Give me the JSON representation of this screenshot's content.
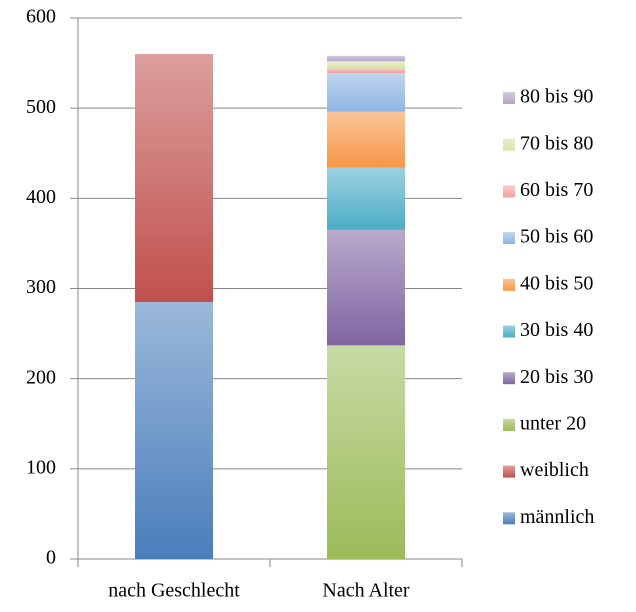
{
  "chart_data": {
    "type": "bar",
    "stacked": true,
    "categories": [
      "nach Geschlecht",
      "Nach Alter"
    ],
    "series": [
      {
        "name": "männlich",
        "color": "#4a7ebb",
        "values": [
          285,
          null
        ]
      },
      {
        "name": "weiblich",
        "color": "#c0504d",
        "values": [
          275,
          null
        ]
      },
      {
        "name": "unter 20",
        "color": "#9bbb59",
        "values": [
          null,
          237
        ]
      },
      {
        "name": "20 bis 30",
        "color": "#8064a2",
        "values": [
          null,
          128
        ]
      },
      {
        "name": "30 bis 40",
        "color": "#4bacc6",
        "values": [
          null,
          69
        ]
      },
      {
        "name": "40 bis 50",
        "color": "#f79646",
        "values": [
          null,
          62
        ]
      },
      {
        "name": "50 bis 60",
        "color": "#8eb4e3",
        "values": [
          null,
          43
        ]
      },
      {
        "name": "60 bis 70",
        "color": "#f2a0a0",
        "values": [
          null,
          5
        ]
      },
      {
        "name": "70 bis 80",
        "color": "#d7e4a5",
        "values": [
          null,
          8
        ]
      },
      {
        "name": "80 bis 90",
        "color": "#b3a2c7",
        "values": [
          null,
          6
        ]
      }
    ],
    "ylim": [
      0,
      600
    ],
    "yticks": [
      0,
      100,
      200,
      300,
      400,
      500,
      600
    ],
    "grid": true,
    "legend": "right"
  }
}
